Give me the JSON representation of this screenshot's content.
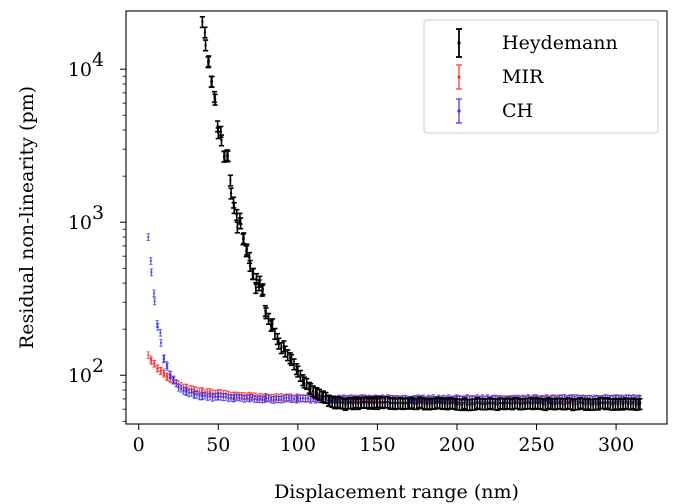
{
  "chart_data": {
    "type": "scatter",
    "xlabel": "Displacement range (nm)",
    "ylabel": "Residual non-linearity (pm)",
    "xlim": [
      -8,
      332
    ],
    "ylim": [
      48,
      24000
    ],
    "y_scale": "log",
    "x_ticks": [
      0,
      50,
      100,
      150,
      200,
      250,
      300
    ],
    "y_ticks": [
      {
        "value": 100,
        "base": "10",
        "exp": "2"
      },
      {
        "value": 1000,
        "base": "10",
        "exp": "3"
      },
      {
        "value": 10000,
        "base": "10",
        "exp": "4"
      }
    ],
    "grid": false,
    "legend": "top-right",
    "series": [
      {
        "name": "Heydemann",
        "color": "#000000",
        "x": [
          40,
          42,
          44,
          46,
          48,
          50,
          52,
          54,
          56,
          58,
          60,
          62,
          64,
          66,
          68,
          70,
          72,
          74,
          76,
          78,
          80,
          84,
          88,
          92,
          96,
          100,
          104,
          108,
          112,
          116,
          120,
          125,
          130,
          140,
          150,
          170,
          200,
          230,
          260,
          290,
          315
        ],
        "y": [
          19000,
          15500,
          10500,
          8500,
          6200,
          4100,
          3500,
          2700,
          2900,
          1600,
          1350,
          980,
          1000,
          780,
          640,
          560,
          470,
          390,
          400,
          340,
          260,
          205,
          170,
          145,
          125,
          105,
          90,
          82,
          76,
          72,
          68,
          66,
          65,
          66,
          66,
          66,
          65,
          65,
          65,
          65,
          65
        ]
      },
      {
        "name": "MIR",
        "color": "#ee3333",
        "x": [
          6,
          8,
          10,
          12,
          14,
          16,
          18,
          20,
          22,
          25,
          30,
          35,
          40,
          45,
          50,
          60,
          70,
          80,
          100,
          120,
          150,
          200,
          250,
          300,
          315
        ],
        "y": [
          137,
          123,
          120,
          110,
          107,
          103,
          98,
          95,
          93,
          87,
          83,
          80,
          78,
          77,
          76,
          74,
          73,
          72,
          71,
          70,
          70,
          69,
          70,
          70,
          70
        ]
      },
      {
        "name": "CH",
        "color": "#3333ee",
        "x": [
          6,
          8,
          10,
          12,
          14,
          16,
          18,
          20,
          22,
          25,
          30,
          35,
          40,
          50,
          60,
          80,
          100,
          150,
          200,
          250,
          300,
          315
        ],
        "y": [
          820,
          480,
          300,
          220,
          165,
          130,
          112,
          100,
          92,
          84,
          78,
          75,
          73,
          72,
          71,
          70,
          70,
          70,
          70,
          70,
          70,
          70
        ]
      }
    ]
  }
}
